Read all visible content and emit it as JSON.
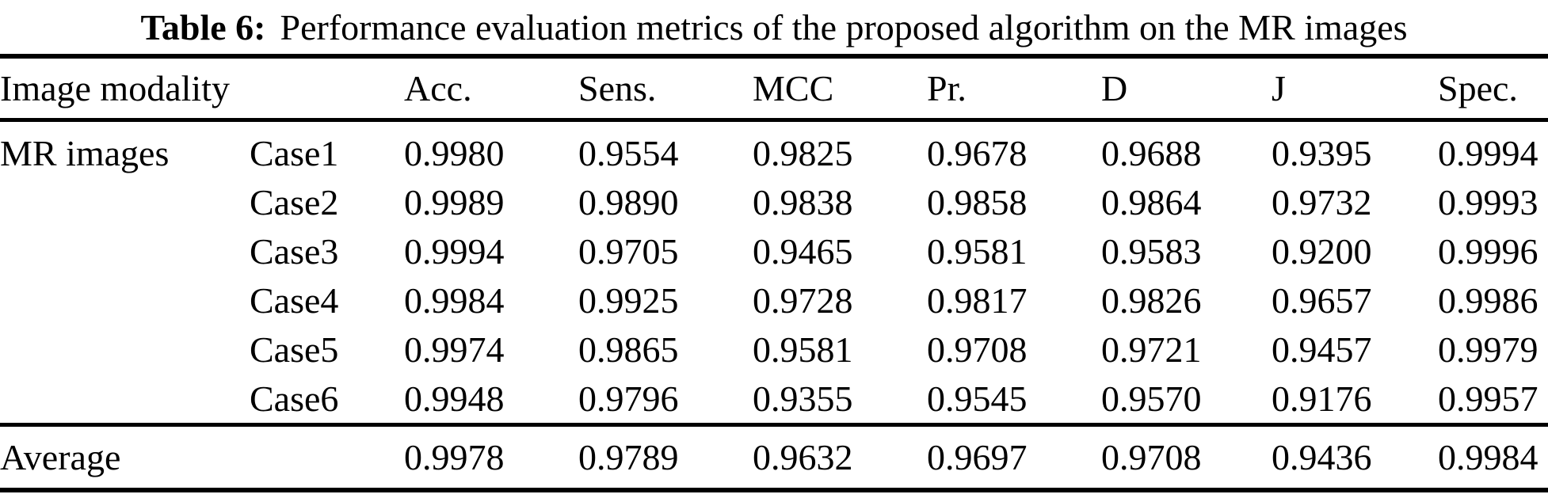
{
  "page": {
    "background_color": "#ffffff",
    "text_color": "#000000"
  },
  "table": {
    "caption": {
      "label": "Table 6:",
      "text": "Performance evaluation metrics of the proposed algorithm on the MR images"
    },
    "columns": [
      "Image modality",
      "Acc.",
      "Sens.",
      "MCC",
      "Pr.",
      "D",
      "J",
      "Spec."
    ],
    "group_label": "MR images",
    "rows": [
      {
        "case": "Case1",
        "values": [
          "0.9980",
          "0.9554",
          "0.9825",
          "0.9678",
          "0.9688",
          "0.9395",
          "0.9994"
        ]
      },
      {
        "case": "Case2",
        "values": [
          "0.9989",
          "0.9890",
          "0.9838",
          "0.9858",
          "0.9864",
          "0.9732",
          "0.9993"
        ]
      },
      {
        "case": "Case3",
        "values": [
          "0.9994",
          "0.9705",
          "0.9465",
          "0.9581",
          "0.9583",
          "0.9200",
          "0.9996"
        ]
      },
      {
        "case": "Case4",
        "values": [
          "0.9984",
          "0.9925",
          "0.9728",
          "0.9817",
          "0.9826",
          "0.9657",
          "0.9986"
        ]
      },
      {
        "case": "Case5",
        "values": [
          "0.9974",
          "0.9865",
          "0.9581",
          "0.9708",
          "0.9721",
          "0.9457",
          "0.9979"
        ]
      },
      {
        "case": "Case6",
        "values": [
          "0.9948",
          "0.9796",
          "0.9355",
          "0.9545",
          "0.9570",
          "0.9176",
          "0.9957"
        ]
      }
    ],
    "footer": {
      "label": "Average",
      "values": [
        "0.9978",
        "0.9789",
        "0.9632",
        "0.9697",
        "0.9708",
        "0.9436",
        "0.9984"
      ]
    }
  }
}
